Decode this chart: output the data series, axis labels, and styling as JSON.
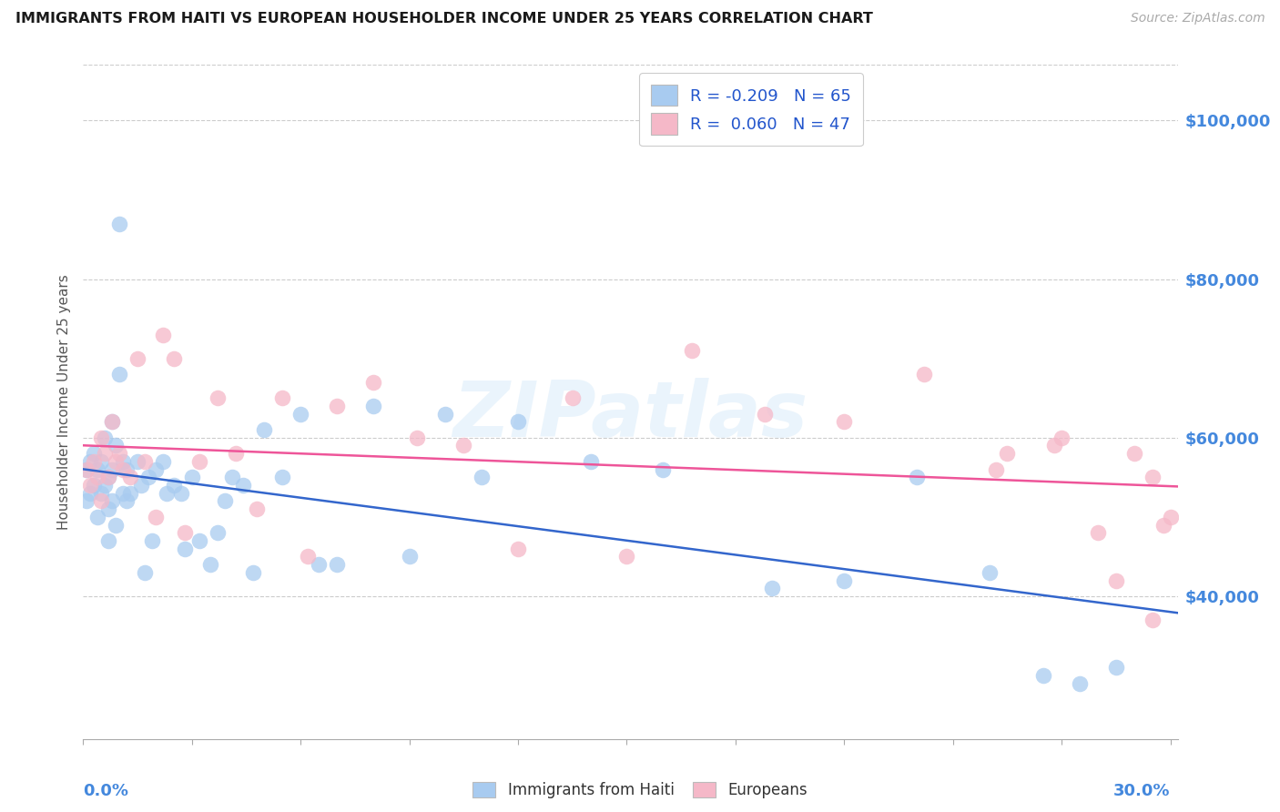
{
  "title": "IMMIGRANTS FROM HAITI VS EUROPEAN HOUSEHOLDER INCOME UNDER 25 YEARS CORRELATION CHART",
  "source": "Source: ZipAtlas.com",
  "ylabel": "Householder Income Under 25 years",
  "xlim": [
    0.0,
    0.302
  ],
  "ylim": [
    22000,
    107000
  ],
  "yticks": [
    40000,
    60000,
    80000,
    100000
  ],
  "ytick_labels": [
    "$40,000",
    "$60,000",
    "$80,000",
    "$100,000"
  ],
  "r_haiti": -0.209,
  "n_haiti": 65,
  "r_european": 0.06,
  "n_european": 47,
  "color_haiti": "#A8CBF0",
  "color_european": "#F5B8C8",
  "color_haiti_line": "#3366CC",
  "color_european_line": "#EE5599",
  "color_axis_label": "#4488DD",
  "watermark": "ZIPatlas",
  "haiti_x": [
    0.001,
    0.001,
    0.002,
    0.002,
    0.003,
    0.003,
    0.004,
    0.004,
    0.005,
    0.005,
    0.006,
    0.006,
    0.007,
    0.007,
    0.007,
    0.008,
    0.008,
    0.008,
    0.009,
    0.009,
    0.01,
    0.01,
    0.011,
    0.011,
    0.012,
    0.012,
    0.013,
    0.015,
    0.016,
    0.017,
    0.018,
    0.019,
    0.02,
    0.022,
    0.023,
    0.025,
    0.027,
    0.028,
    0.03,
    0.032,
    0.035,
    0.037,
    0.039,
    0.041,
    0.044,
    0.047,
    0.05,
    0.055,
    0.06,
    0.065,
    0.07,
    0.08,
    0.09,
    0.1,
    0.11,
    0.12,
    0.14,
    0.16,
    0.19,
    0.21,
    0.23,
    0.25,
    0.265,
    0.275,
    0.285
  ],
  "haiti_y": [
    56000,
    52000,
    57000,
    53000,
    58000,
    54000,
    56000,
    50000,
    57000,
    53000,
    60000,
    54000,
    55000,
    51000,
    47000,
    62000,
    56000,
    52000,
    59000,
    49000,
    87000,
    68000,
    57000,
    53000,
    56000,
    52000,
    53000,
    57000,
    54000,
    43000,
    55000,
    47000,
    56000,
    57000,
    53000,
    54000,
    53000,
    46000,
    55000,
    47000,
    44000,
    48000,
    52000,
    55000,
    54000,
    43000,
    61000,
    55000,
    63000,
    44000,
    44000,
    64000,
    45000,
    63000,
    55000,
    62000,
    57000,
    56000,
    41000,
    42000,
    55000,
    43000,
    30000,
    29000,
    31000
  ],
  "european_x": [
    0.001,
    0.002,
    0.003,
    0.004,
    0.005,
    0.005,
    0.006,
    0.007,
    0.008,
    0.009,
    0.01,
    0.011,
    0.013,
    0.015,
    0.017,
    0.02,
    0.022,
    0.025,
    0.028,
    0.032,
    0.037,
    0.042,
    0.048,
    0.055,
    0.062,
    0.07,
    0.08,
    0.092,
    0.105,
    0.12,
    0.135,
    0.15,
    0.168,
    0.188,
    0.21,
    0.232,
    0.252,
    0.268,
    0.28,
    0.29,
    0.295,
    0.298,
    0.3,
    0.295,
    0.285,
    0.27,
    0.255
  ],
  "european_y": [
    56000,
    54000,
    57000,
    55000,
    52000,
    60000,
    58000,
    55000,
    62000,
    57000,
    58000,
    56000,
    55000,
    70000,
    57000,
    50000,
    73000,
    70000,
    48000,
    57000,
    65000,
    58000,
    51000,
    65000,
    45000,
    64000,
    67000,
    60000,
    59000,
    46000,
    65000,
    45000,
    71000,
    63000,
    62000,
    68000,
    56000,
    59000,
    48000,
    58000,
    37000,
    49000,
    50000,
    55000,
    42000,
    60000,
    58000
  ]
}
